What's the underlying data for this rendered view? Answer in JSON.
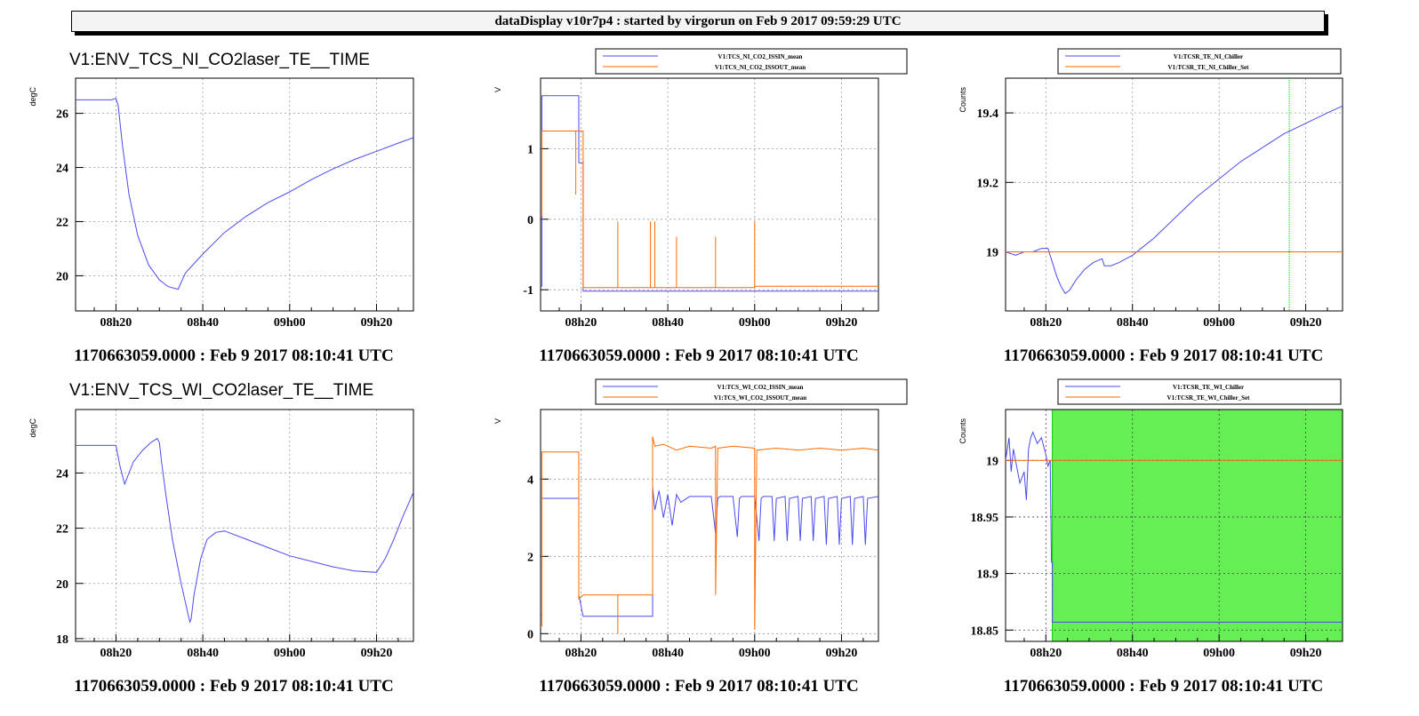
{
  "header": {
    "title": "dataDisplay v10r7p4 : started by virgorun on Feb  9 2017 09:59:29 UTC"
  },
  "colors": {
    "blue": "#4b4bf0",
    "orange": "#ff6a00",
    "green": "#00cc00",
    "green_fill": "#66ee55",
    "grid": "#999999"
  },
  "x_ticks": [
    "08h20",
    "08h40",
    "09h00",
    "09h20"
  ],
  "x_tick_times": [
    20,
    40,
    60,
    80
  ],
  "x_range_minutes_after_08h00": [
    10.7,
    88.5
  ],
  "chart_data": [
    {
      "type": "line",
      "title": "V1:ENV_TCS_NI_CO2laser_TE__TIME",
      "ylabel": "degC",
      "caption": "1170663059.0000 : Feb  9 2017 08:10:41 UTC",
      "ylim": [
        18.7,
        27.3
      ],
      "yticks": [
        20,
        22,
        24,
        26
      ],
      "ytick_labels": [
        "20",
        "22",
        "24",
        "26"
      ],
      "legend": [],
      "series": [
        {
          "color": "blue",
          "x": [
            10.7,
            16,
            19,
            20,
            20.5,
            21.5,
            23,
            25,
            27.5,
            30,
            32,
            34.3,
            36,
            40,
            45,
            50,
            55,
            60,
            65,
            70,
            75,
            80,
            85,
            88.5
          ],
          "y": [
            26.5,
            26.5,
            26.5,
            26.55,
            26.3,
            24.8,
            23.0,
            21.5,
            20.4,
            19.85,
            19.6,
            19.5,
            20.1,
            20.8,
            21.6,
            22.2,
            22.7,
            23.1,
            23.55,
            23.95,
            24.3,
            24.6,
            24.9,
            25.1
          ]
        }
      ]
    },
    {
      "type": "line",
      "title": "",
      "ylabel": "V",
      "caption": "1170663059.0000 : Feb  9 2017 08:10:41 UTC",
      "ylim": [
        -1.3,
        2.0
      ],
      "yticks": [
        -1,
        0,
        1
      ],
      "ytick_labels": [
        "-1",
        "0",
        "1"
      ],
      "legend": [
        "V1:TCS_NI_CO2_ISSIN_mean",
        "V1:TCS_NI_CO2_ISSOUT_mean"
      ],
      "series": [
        {
          "color": "blue",
          "x": [
            10.7,
            11,
            11,
            19.5,
            19.5,
            20.5,
            20.5,
            88.5
          ],
          "y": [
            -0.95,
            -0.95,
            1.75,
            1.75,
            0.8,
            0.8,
            -1.02,
            -1.02
          ]
        },
        {
          "color": "orange",
          "x": [
            10.7,
            11,
            11,
            18.8,
            18.8,
            18.8,
            20.5,
            20.5,
            28.5,
            28.5,
            28.5,
            36,
            36,
            36,
            37,
            37,
            37,
            42,
            42,
            42,
            51,
            51,
            51,
            60,
            60,
            60,
            88.5
          ],
          "y": [
            0.05,
            0.05,
            1.25,
            1.25,
            0.35,
            1.25,
            1.25,
            -0.97,
            -0.97,
            -0.03,
            -0.97,
            -0.97,
            -0.03,
            -0.97,
            -0.97,
            -0.03,
            -0.97,
            -0.97,
            -0.25,
            -0.97,
            -0.97,
            -0.25,
            -0.97,
            -0.97,
            -0.03,
            -0.95,
            -0.95
          ]
        }
      ]
    },
    {
      "type": "line",
      "title": "",
      "ylabel": "Counts",
      "caption": "1170663059.0000 : Feb  9 2017 08:10:41 UTC",
      "ylim": [
        18.83,
        19.5
      ],
      "yticks": [
        19.0,
        19.2,
        19.4
      ],
      "ytick_labels": [
        "19",
        "19.2",
        "19.4"
      ],
      "legend": [
        "V1:TCSR_TE_NI_Chiller",
        "V1:TCSR_TE_NI_Chiller_Set"
      ],
      "vline": {
        "x": 76.2,
        "color": "green"
      },
      "series": [
        {
          "color": "blue",
          "x": [
            10.7,
            13,
            15,
            17,
            19,
            20.5,
            21.5,
            22.5,
            23.5,
            24.5,
            25.5,
            27,
            29,
            31,
            33,
            33.5,
            34,
            35,
            37,
            40,
            45,
            50,
            55,
            60,
            65,
            70,
            75,
            80,
            85,
            88.5
          ],
          "y": [
            19.0,
            18.99,
            19.0,
            19.0,
            19.01,
            19.01,
            18.97,
            18.93,
            18.9,
            18.88,
            18.89,
            18.92,
            18.95,
            18.97,
            18.98,
            18.96,
            18.96,
            18.96,
            18.97,
            18.99,
            19.04,
            19.1,
            19.16,
            19.21,
            19.26,
            19.3,
            19.34,
            19.37,
            19.4,
            19.42
          ]
        },
        {
          "color": "orange",
          "x": [
            10.7,
            88.5
          ],
          "y": [
            19.0,
            19.0
          ]
        }
      ]
    },
    {
      "type": "line",
      "title": "V1:ENV_TCS_WI_CO2laser_TE__TIME",
      "ylabel": "degC",
      "caption": "1170663059.0000 : Feb  9 2017 08:10:41 UTC",
      "ylim": [
        17.9,
        26.3
      ],
      "yticks": [
        18,
        20,
        22,
        24
      ],
      "ytick_labels": [
        "18",
        "20",
        "22",
        "24"
      ],
      "legend": [],
      "series": [
        {
          "color": "blue",
          "x": [
            10.7,
            20,
            21,
            22,
            23,
            24,
            26,
            28,
            29.5,
            30,
            30.5,
            31.5,
            33,
            35,
            37,
            37.3,
            38,
            39.5,
            41,
            43,
            45,
            50,
            55,
            60,
            65,
            70,
            75,
            80,
            82,
            84,
            86,
            88.5
          ],
          "y": [
            25.0,
            25.0,
            24.2,
            23.6,
            24.0,
            24.4,
            24.8,
            25.1,
            25.25,
            25.1,
            24.4,
            23.2,
            21.6,
            20.0,
            18.6,
            18.7,
            19.6,
            20.9,
            21.6,
            21.85,
            21.9,
            21.6,
            21.3,
            21.0,
            20.8,
            20.6,
            20.45,
            20.4,
            20.9,
            21.6,
            22.4,
            23.3
          ]
        }
      ]
    },
    {
      "type": "line",
      "title": "",
      "ylabel": "V",
      "caption": "1170663059.0000 : Feb  9 2017 08:10:41 UTC",
      "ylim": [
        -0.2,
        5.8
      ],
      "yticks": [
        0,
        2,
        4
      ],
      "ytick_labels": [
        "0",
        "2",
        "4"
      ],
      "legend": [
        "V1:TCS_WI_CO2_ISSIN_mean",
        "V1:TCS_WI_CO2_ISSOUT_mean"
      ],
      "series": [
        {
          "color": "blue",
          "x": [
            10.7,
            11,
            11,
            19.5,
            19.5,
            20.5,
            20.5,
            36.5,
            36.5,
            37,
            38,
            39,
            40,
            41,
            42,
            43,
            45,
            50,
            51,
            51.5,
            52,
            55,
            56,
            56.5,
            57,
            60,
            61,
            61.5,
            62,
            64,
            64.5,
            65,
            67,
            67.5,
            68,
            70,
            70.5,
            71,
            73,
            73.5,
            74,
            76,
            76.5,
            77,
            79,
            79.5,
            80,
            82,
            82.5,
            83,
            85,
            85.5,
            86,
            88.5
          ],
          "y": [
            0.5,
            0.5,
            3.5,
            3.5,
            1.0,
            0.45,
            0.45,
            0.45,
            3.8,
            3.2,
            3.7,
            3.0,
            3.6,
            2.8,
            3.6,
            3.4,
            3.55,
            3.55,
            2.6,
            3.5,
            3.55,
            3.55,
            2.5,
            3.5,
            3.55,
            3.55,
            2.4,
            3.5,
            3.55,
            3.55,
            2.4,
            3.5,
            3.55,
            2.4,
            3.5,
            3.55,
            2.4,
            3.5,
            3.55,
            2.4,
            3.5,
            3.55,
            2.3,
            3.5,
            3.55,
            2.3,
            3.5,
            3.55,
            2.3,
            3.5,
            3.55,
            2.3,
            3.5,
            3.55
          ]
        },
        {
          "color": "orange",
          "x": [
            10.7,
            11,
            11,
            19.5,
            19.5,
            20.5,
            20.5,
            28.5,
            28.5,
            28.5,
            36.5,
            36.5,
            37,
            39,
            42,
            45,
            50,
            51,
            51,
            51.5,
            55,
            60,
            60,
            60.5,
            65,
            70,
            75,
            80,
            85,
            88.5
          ],
          "y": [
            0.2,
            0.2,
            4.7,
            4.7,
            0.9,
            1.0,
            1.0,
            1.0,
            0.0,
            1.0,
            1.0,
            5.1,
            4.85,
            4.9,
            4.75,
            4.85,
            4.8,
            4.85,
            1.0,
            4.8,
            4.85,
            4.8,
            0.1,
            4.75,
            4.8,
            4.75,
            4.8,
            4.75,
            4.8,
            4.75
          ]
        }
      ]
    },
    {
      "type": "line",
      "title": "",
      "ylabel": "Counts",
      "caption": "1170663059.0000 : Feb  9 2017 08:10:41 UTC",
      "ylim": [
        18.84,
        19.045
      ],
      "yticks": [
        18.85,
        18.9,
        18.95,
        19.0
      ],
      "ytick_labels": [
        "18.85",
        "18.9",
        "18.95",
        "19"
      ],
      "legend": [
        "V1:TCSR_TE_WI_Chiller",
        "V1:TCSR_TE_WI_Chiller_Set"
      ],
      "fill": {
        "x0": 21.5,
        "x1": 88.5,
        "color": "green_fill"
      },
      "series": [
        {
          "color": "blue",
          "x": [
            10.7,
            11.5,
            12,
            12.5,
            13,
            14,
            15,
            15.5,
            16,
            16.5,
            17,
            18,
            19,
            20,
            20.5,
            21,
            21.3,
            21.5,
            21.5,
            88.5
          ],
          "y": [
            19.0,
            19.02,
            18.99,
            19.01,
            19.0,
            18.98,
            18.99,
            18.965,
            19.01,
            19.02,
            19.025,
            19.015,
            19.02,
            19.005,
            18.995,
            19.0,
            18.91,
            18.91,
            18.857,
            18.857
          ]
        },
        {
          "color": "orange",
          "x": [
            10.7,
            88.5
          ],
          "y": [
            19.0,
            19.0
          ]
        }
      ]
    }
  ]
}
